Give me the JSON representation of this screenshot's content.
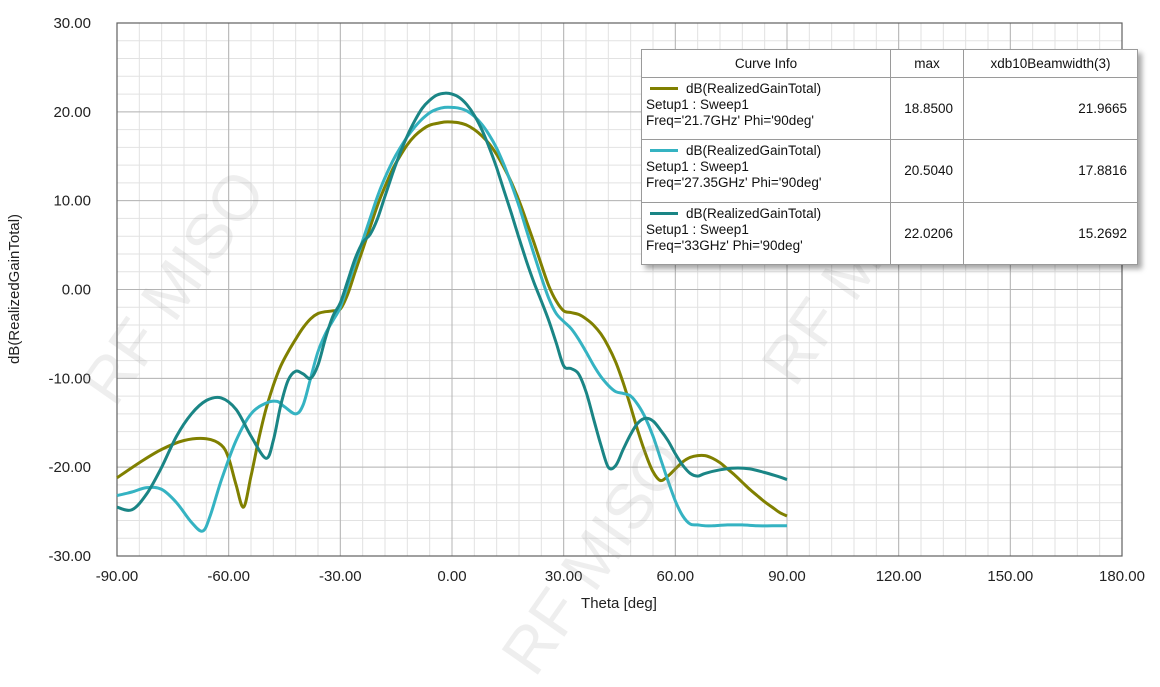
{
  "chart_data": {
    "type": "line",
    "xlabel": "Theta [deg]",
    "ylabel": "dB(RealizedGainTotal)",
    "xlim": [
      -90,
      180
    ],
    "ylim": [
      -30,
      30
    ],
    "x_ticks": [
      "-90.00",
      "-60.00",
      "-30.00",
      "0.00",
      "30.00",
      "60.00",
      "90.00",
      "120.00",
      "150.00",
      "180.00"
    ],
    "y_ticks": [
      "30.00",
      "20.00",
      "10.00",
      "0.00",
      "-10.00",
      "-20.00",
      "-30.00"
    ],
    "grid": true,
    "legend": {
      "placement": "top-right",
      "headers": [
        "Curve Info",
        "max",
        "xdb10Beamwidth(3)"
      ],
      "rows": [
        {
          "line1": "dB(RealizedGainTotal)",
          "line2": "Setup1 : Sweep1",
          "line3": "Freq='21.7GHz' Phi='90deg'",
          "max": "18.8500",
          "bw": "21.9665",
          "color": "#808000"
        },
        {
          "line1": "dB(RealizedGainTotal)",
          "line2": "Setup1 : Sweep1",
          "line3": "Freq='27.35GHz' Phi='90deg'",
          "max": "20.5040",
          "bw": "17.8816",
          "color": "#35b3c2"
        },
        {
          "line1": "dB(RealizedGainTotal)",
          "line2": "Setup1 : Sweep1",
          "line3": "Freq='33GHz' Phi='90deg'",
          "max": "22.0206",
          "bw": "15.2692",
          "color": "#1a8585"
        }
      ]
    },
    "series": [
      {
        "color": "#808000",
        "x": [
          -90,
          -84,
          -78,
          -72,
          -66,
          -62,
          -60,
          -58,
          -56,
          -54,
          -52,
          -50,
          -48,
          -46,
          -44,
          -42,
          -40,
          -38,
          -36,
          -34,
          -32,
          -30,
          -28,
          -26,
          -24,
          -22,
          -20,
          -18,
          -16,
          -14,
          -12,
          -10,
          -8,
          -6,
          -4,
          -2,
          0,
          2,
          4,
          6,
          8,
          10,
          12,
          14,
          16,
          18,
          20,
          22,
          24,
          26,
          28,
          30,
          32,
          34,
          36,
          38,
          40,
          42,
          44,
          46,
          48,
          50,
          52,
          54,
          56,
          58,
          60,
          62,
          64,
          66,
          68,
          70,
          72,
          74,
          76,
          78,
          80,
          82,
          84,
          86,
          88,
          90
        ],
        "y": [
          -21.2,
          -19.5,
          -18,
          -17,
          -16.8,
          -17.5,
          -19,
          -22,
          -24.5,
          -21,
          -17,
          -13.5,
          -10.8,
          -8.6,
          -7,
          -5.6,
          -4.3,
          -3.3,
          -2.7,
          -2.5,
          -2.4,
          -2.2,
          -0.5,
          2,
          4.5,
          7,
          9.5,
          11.6,
          13.5,
          15,
          16.3,
          17.3,
          18,
          18.5,
          18.7,
          18.85,
          18.85,
          18.75,
          18.5,
          18,
          17.3,
          16.4,
          15.2,
          13.7,
          12,
          10,
          7.7,
          5.3,
          2.8,
          0.4,
          -1.3,
          -2.4,
          -2.6,
          -2.8,
          -3.3,
          -4,
          -5,
          -6.4,
          -8.2,
          -10.5,
          -13.2,
          -16,
          -18.5,
          -20.5,
          -21.5,
          -21,
          -20.2,
          -19.4,
          -18.9,
          -18.7,
          -18.7,
          -19,
          -19.5,
          -20.2,
          -20.9,
          -21.7,
          -22.5,
          -23.2,
          -23.9,
          -24.5,
          -25.1,
          -25.5
        ]
      },
      {
        "color": "#35b3c2",
        "x": [
          -90,
          -86,
          -82,
          -78,
          -74,
          -70,
          -67,
          -65,
          -62,
          -58,
          -54,
          -50,
          -47,
          -45,
          -42,
          -40,
          -38,
          -36,
          -34,
          -32,
          -30,
          -28,
          -26,
          -24,
          -22,
          -20,
          -18,
          -16,
          -14,
          -12,
          -10,
          -8,
          -6,
          -4,
          -2,
          0,
          2,
          4,
          6,
          8,
          10,
          12,
          14,
          16,
          18,
          20,
          22,
          24,
          26,
          28,
          30,
          32,
          34,
          36,
          38,
          40,
          42,
          44,
          46,
          48,
          50,
          52,
          54,
          56,
          58,
          60,
          62,
          64,
          66,
          68,
          70,
          74,
          78,
          82,
          86,
          90
        ],
        "y": [
          -23.2,
          -22.8,
          -22.3,
          -22.5,
          -24,
          -26.2,
          -27.2,
          -25.5,
          -21.5,
          -17,
          -14,
          -12.8,
          -12.6,
          -13.2,
          -14,
          -13,
          -10,
          -7,
          -5,
          -3.5,
          -2,
          0.5,
          3,
          5.5,
          8,
          10.5,
          12.6,
          14.4,
          15.9,
          17.2,
          18.3,
          19.2,
          19.9,
          20.3,
          20.5,
          20.5,
          20.4,
          20.1,
          19.5,
          18.6,
          17.4,
          15.9,
          14,
          11.8,
          9.4,
          6.7,
          4,
          1.4,
          -1,
          -2.7,
          -3.6,
          -4.4,
          -5.6,
          -7,
          -8.5,
          -9.8,
          -10.8,
          -11.5,
          -11.7,
          -12,
          -13,
          -14.5,
          -16.5,
          -19,
          -21.5,
          -23.8,
          -25.5,
          -26.4,
          -26.5,
          -26.6,
          -26.6,
          -26.5,
          -26.5,
          -26.6,
          -26.6,
          -26.6
        ]
      },
      {
        "color": "#1a8585",
        "x": [
          -90,
          -86,
          -82,
          -78,
          -74,
          -70,
          -66,
          -62,
          -58,
          -54,
          -50,
          -48,
          -46,
          -44,
          -42,
          -40,
          -38,
          -36,
          -34,
          -32,
          -30,
          -28,
          -26,
          -24,
          -22,
          -20,
          -18,
          -16,
          -14,
          -12,
          -10,
          -8,
          -6,
          -4,
          -2,
          0,
          2,
          4,
          6,
          8,
          10,
          12,
          14,
          16,
          18,
          20,
          22,
          24,
          26,
          28,
          30,
          32,
          34,
          36,
          38,
          40,
          42,
          44,
          46,
          48,
          50,
          52,
          54,
          56,
          58,
          60,
          62,
          64,
          66,
          68,
          72,
          76,
          80,
          84,
          88,
          90
        ],
        "y": [
          -24.5,
          -24.8,
          -23,
          -20,
          -16.5,
          -14,
          -12.5,
          -12.2,
          -13.5,
          -16.5,
          -19,
          -17,
          -13,
          -10.2,
          -9.2,
          -9.5,
          -10,
          -8.5,
          -5.5,
          -3,
          -1.5,
          1,
          3.5,
          5.3,
          6.2,
          8,
          10.5,
          13,
          15.3,
          17.3,
          19,
          20.4,
          21.3,
          21.9,
          22.1,
          22,
          21.6,
          20.8,
          19.6,
          18,
          16,
          13.7,
          11.1,
          8.5,
          5.8,
          3.2,
          0.8,
          -1.3,
          -3.5,
          -6,
          -8.6,
          -8.9,
          -9.5,
          -11.5,
          -14.5,
          -17.5,
          -20,
          -19.8,
          -18,
          -16.3,
          -15,
          -14.5,
          -14.8,
          -15.8,
          -17,
          -18.5,
          -19.8,
          -20.7,
          -21,
          -20.7,
          -20.3,
          -20.1,
          -20.2,
          -20.6,
          -21.1,
          -21.4
        ]
      }
    ]
  }
}
